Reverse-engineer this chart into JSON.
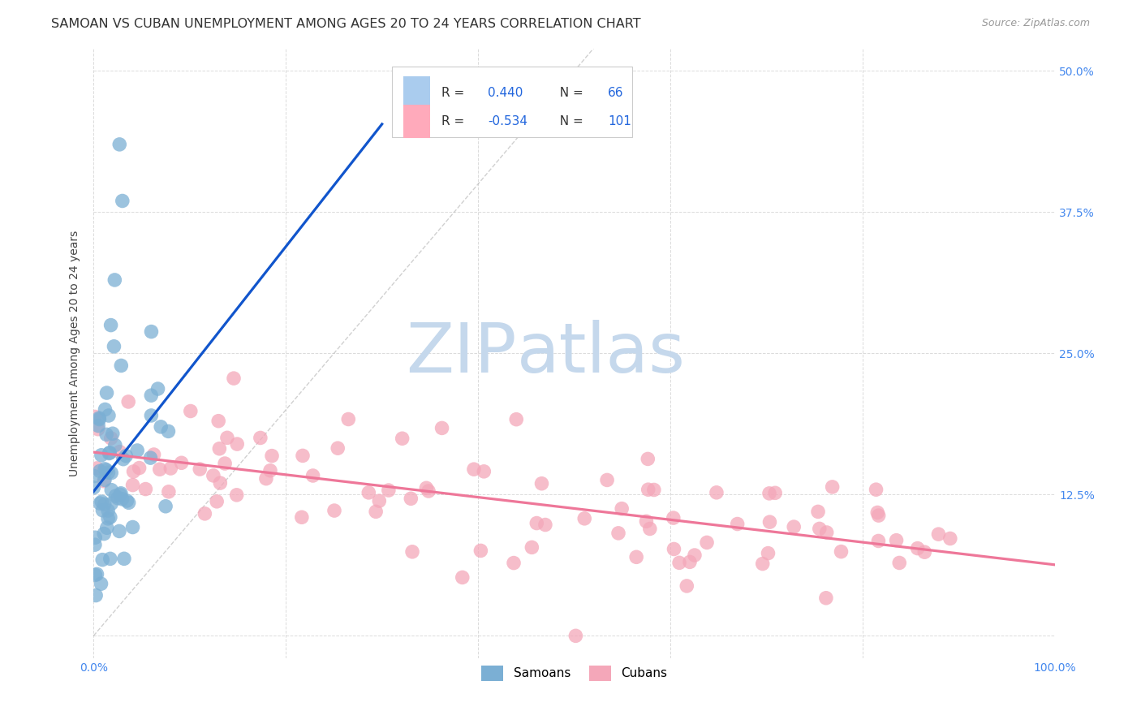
{
  "title": "SAMOAN VS CUBAN UNEMPLOYMENT AMONG AGES 20 TO 24 YEARS CORRELATION CHART",
  "source": "Source: ZipAtlas.com",
  "ylabel": "Unemployment Among Ages 20 to 24 years",
  "xlim": [
    0,
    1.0
  ],
  "ylim": [
    -0.02,
    0.52
  ],
  "xtick_positions": [
    0.0,
    0.2,
    0.4,
    0.6,
    0.8,
    1.0
  ],
  "xtick_labels": [
    "0.0%",
    "",
    "",
    "",
    "",
    "100.0%"
  ],
  "ytick_values": [
    0.0,
    0.125,
    0.25,
    0.375,
    0.5
  ],
  "ytick_labels": [
    "",
    "12.5%",
    "25.0%",
    "37.5%",
    "50.0%"
  ],
  "samoans_color": "#7BAFD4",
  "cubans_color": "#F4A7B9",
  "samoans_R": 0.44,
  "samoans_N": 66,
  "cubans_R": -0.534,
  "cubans_N": 101,
  "background_color": "#ffffff",
  "grid_color": "#cccccc",
  "tick_label_color": "#4488EE",
  "samoans_line_color": "#1155CC",
  "cubans_line_color": "#EE7799",
  "diagonal_color": "#aaaaaa",
  "watermark_zip_color": "#c5d8ec",
  "watermark_atlas_color": "#c5d8ec",
  "title_fontsize": 11.5,
  "source_fontsize": 9,
  "label_fontsize": 10,
  "tick_fontsize": 10,
  "legend_label_color": "#333333",
  "legend_value_color": "#2266DD"
}
